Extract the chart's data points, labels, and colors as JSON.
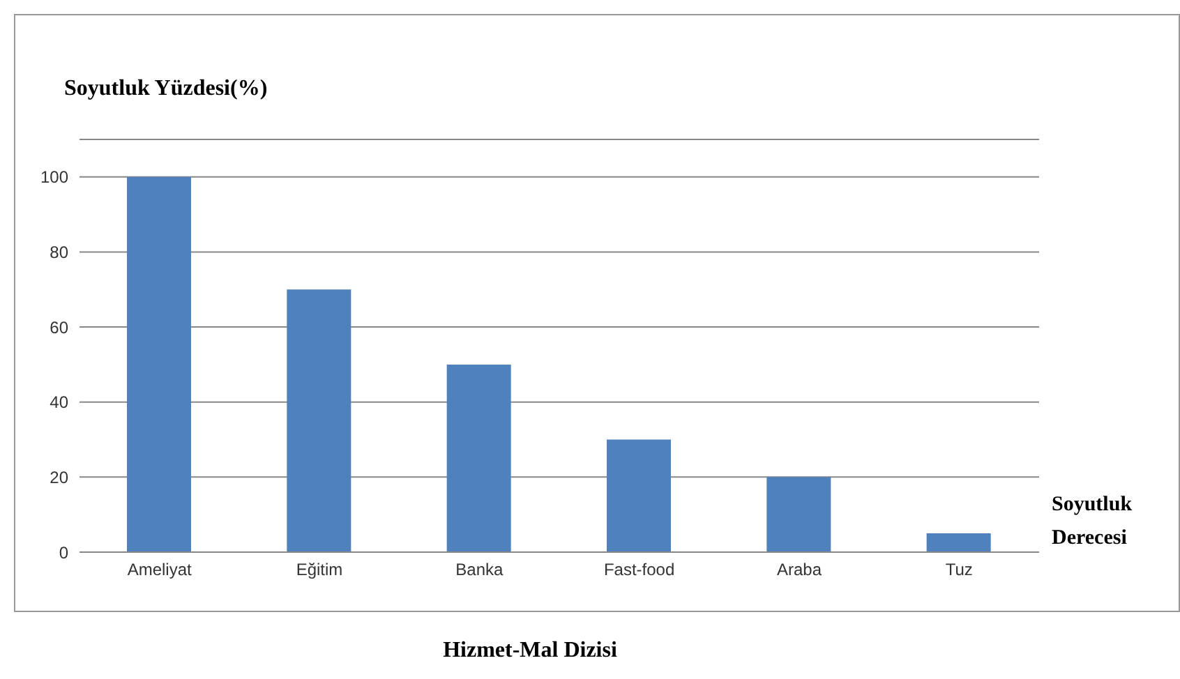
{
  "chart_data": {
    "type": "bar",
    "ylabel": "Soyutluk Yüzdesi(%)",
    "xlabel": "Hizmet-Mal Dizisi",
    "annotations": [
      "Soyutluk Derecesi"
    ],
    "categories": [
      "Ameliyat",
      "Eğitim",
      "Banka",
      "Fast-food",
      "Araba",
      "Tuz"
    ],
    "values": [
      100,
      70,
      50,
      30,
      20,
      5
    ],
    "color": "#4f81bd",
    "ylim": [
      0,
      110
    ],
    "yticks": [
      0,
      20,
      40,
      60,
      80,
      100
    ],
    "grid": "y",
    "legend": false
  }
}
